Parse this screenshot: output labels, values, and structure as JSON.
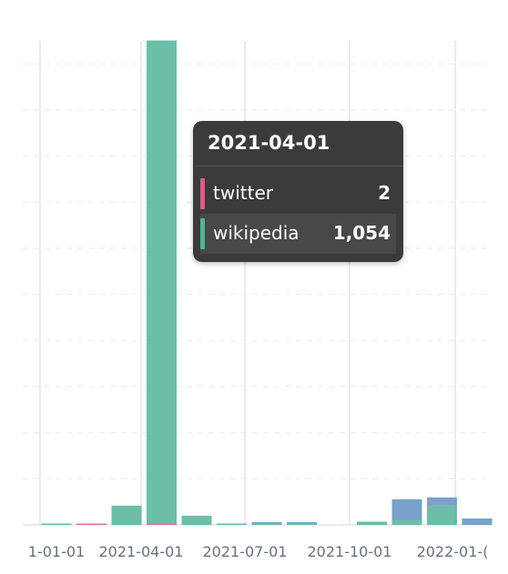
{
  "colors": {
    "twitter": "#d36086",
    "wikipedia": "#54b399",
    "other": "#6092c0",
    "grid": "#e9ebef",
    "tick_text": "#69707d"
  },
  "chart_data": {
    "type": "bar",
    "stacked": true,
    "x_tick_labels": [
      "1-01-01",
      "2021-04-01",
      "2021-07-01",
      "2021-10-01",
      "2022-01-("
    ],
    "bar_dates": [
      "2021-01-01",
      "2021-02-01",
      "2021-03-01",
      "2021-04-01",
      "2021-05-01",
      "2021-06-01",
      "2021-07-01",
      "2021-08-01",
      "2021-09-01",
      "2021-10-01",
      "2021-11-01",
      "2021-12-01",
      "2022-01-01"
    ],
    "series": [
      {
        "name": "twitter",
        "color_key": "twitter",
        "values": [
          0,
          2,
          0,
          2,
          0,
          0,
          0,
          0,
          0,
          0,
          0,
          0,
          0
        ]
      },
      {
        "name": "wikipedia",
        "color_key": "wikipedia",
        "values": [
          3,
          0,
          42,
          1054,
          20,
          3,
          1,
          1,
          0,
          7,
          10,
          42,
          0
        ]
      },
      {
        "name": "",
        "color_key": "other",
        "values": [
          0,
          0,
          0,
          0,
          0,
          0,
          2,
          2,
          0,
          0,
          46,
          18,
          14
        ]
      }
    ],
    "ylim": [
      0,
      1056
    ],
    "grid": true
  },
  "tooltip": {
    "title": "2021-04-01",
    "rows": [
      {
        "label": "twitter",
        "value": "2",
        "color_key": "twitter"
      },
      {
        "label": "wikipedia",
        "value": "1,054",
        "color_key": "wikipedia"
      }
    ]
  }
}
